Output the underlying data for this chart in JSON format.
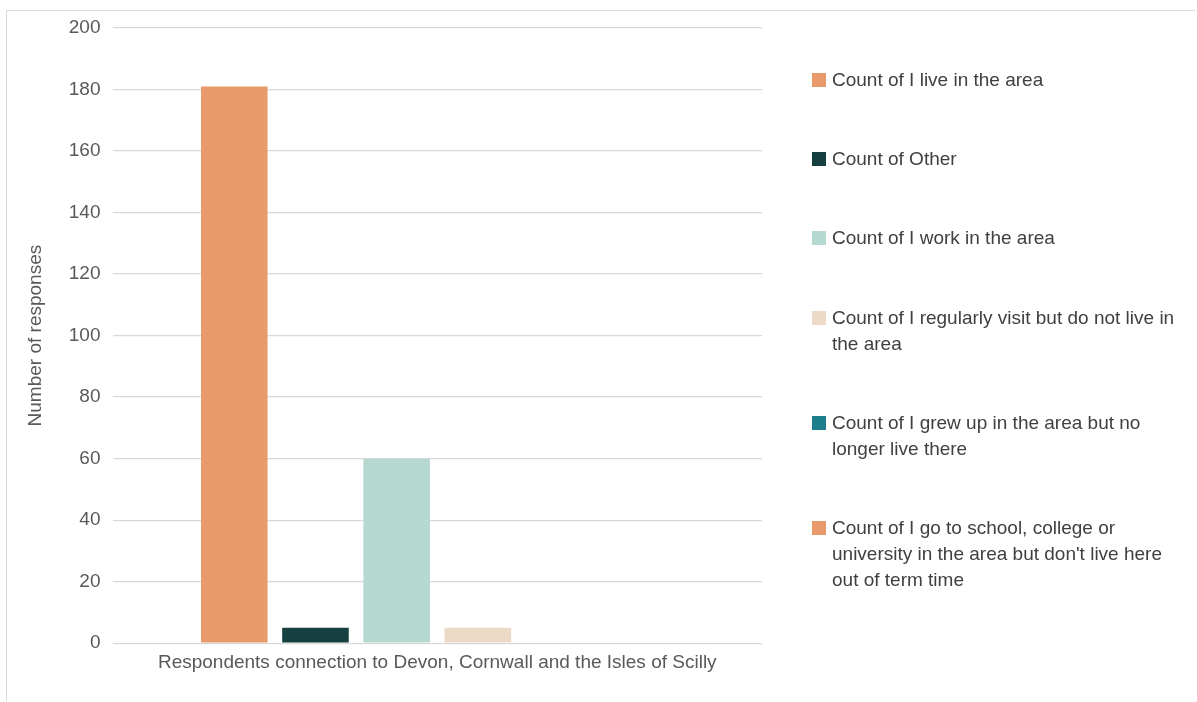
{
  "chart_data": {
    "type": "bar",
    "ylabel": "Number of responses",
    "categories": [
      "Respondents connection to Devon, Cornwall and the Isles of Scilly"
    ],
    "series": [
      {
        "name": "Count of I live in the area",
        "color": "#e99a6a",
        "values": [
          181
        ]
      },
      {
        "name": "Count of Other",
        "color": "#15403f",
        "values": [
          5
        ]
      },
      {
        "name": "Count of I work in the area",
        "color": "#b5d8d1",
        "values": [
          60
        ]
      },
      {
        "name": "Count of I regularly visit but do not live in the area",
        "color": "#ecdac7",
        "values": [
          5
        ]
      },
      {
        "name": "Count of I grew up in the area but no longer live there",
        "color": "#1e7f8c",
        "values": [
          0
        ]
      },
      {
        "name": "Count of I go to school, college or university in the area but don't live here out of term time",
        "color": "#e99a6a",
        "values": [
          0
        ]
      }
    ],
    "ylim": [
      0,
      200
    ],
    "yticks": [
      0,
      20,
      40,
      60,
      80,
      100,
      120,
      140,
      160,
      180,
      200
    ],
    "grid": "y",
    "legend": "right"
  }
}
